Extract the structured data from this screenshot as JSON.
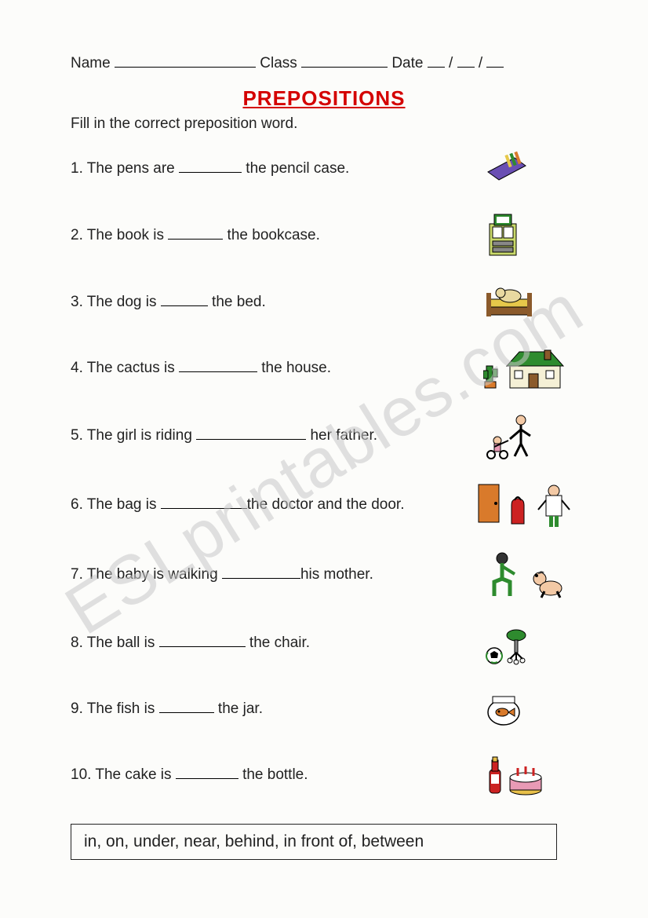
{
  "header": {
    "name_label": "Name",
    "class_label": "Class",
    "date_label": "Date",
    "name_blank_width": 180,
    "class_blank_width": 110,
    "date_sep": "/",
    "date_blank_width": 22
  },
  "title": "PREPOSITIONS",
  "instruction": "Fill in the correct preposition word.",
  "questions": [
    {
      "n": 1,
      "before": "The pens are ",
      "blank_width": 80,
      "after": " the pencil case.",
      "icon": "pencil-case"
    },
    {
      "n": 2,
      "before": "The book is ",
      "blank_width": 70,
      "after": " the bookcase.",
      "icon": "bookcase"
    },
    {
      "n": 3,
      "before": "The dog is ",
      "blank_width": 60,
      "after": " the bed.",
      "icon": "dog-bed"
    },
    {
      "n": 4,
      "before": "The cactus is ",
      "blank_width": 100,
      "after": " the house.",
      "icon": "cactus-house"
    },
    {
      "n": 5,
      "before": "The girl is riding ",
      "blank_width": 140,
      "after": " her father.",
      "icon": "girl-father"
    },
    {
      "n": 6,
      "before": "The bag is ",
      "blank_width": 110,
      "after": "the doctor and the door.",
      "icon": "bag-doctor-door"
    },
    {
      "n": 7,
      "before": "The baby is walking ",
      "blank_width": 100,
      "after": "his mother.",
      "icon": "baby-mother"
    },
    {
      "n": 8,
      "before": "The ball is ",
      "blank_width": 110,
      "after": " the chair.",
      "icon": "ball-chair"
    },
    {
      "n": 9,
      "before": "The fish is ",
      "blank_width": 70,
      "after": " the jar.",
      "icon": "fish-jar"
    },
    {
      "n": 10,
      "before": "The cake is ",
      "blank_width": 80,
      "after": " the bottle.",
      "icon": "bottle-cake"
    }
  ],
  "word_bank": "in, on, under, near, behind, in front of, between",
  "watermark": "ESLprintables.com",
  "colors": {
    "title": "#d40000",
    "text": "#222222",
    "watermark": "#c9c9c9",
    "background": "#fcfcfa",
    "green": "#2e8b2e",
    "brown": "#8b5a2b",
    "purple": "#6a4fb3",
    "yellow": "#e6c84a",
    "orange": "#d97a2b",
    "red": "#c22",
    "blue": "#5aa0d6",
    "skin": "#f3c9a5",
    "pink": "#e89ab5"
  }
}
